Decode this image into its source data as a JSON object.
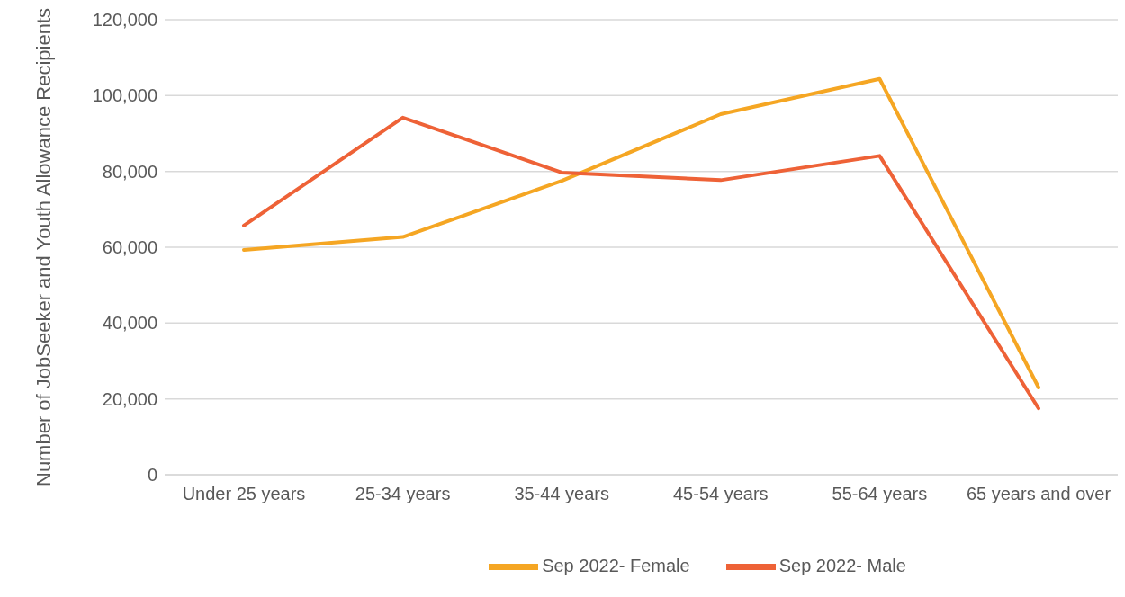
{
  "chart_data": {
    "type": "line",
    "ylabel": "Number of JobSeeker and Youth Allowance Recipients",
    "categories": [
      "Under 25 years",
      "25-34 years",
      "35-44 years",
      "45-54 years",
      "55-64 years",
      "65 years and over"
    ],
    "series": [
      {
        "name": "Sep 2022- Female",
        "color": "#f5a623",
        "values": [
          59300,
          62700,
          77500,
          95100,
          104400,
          23000
        ]
      },
      {
        "name": "Sep 2022- Male",
        "color": "#ee6237",
        "values": [
          65700,
          94200,
          79700,
          77700,
          84100,
          17500
        ]
      }
    ],
    "ylim": [
      0,
      120000
    ],
    "yticks": [
      0,
      {
        "value": 20000,
        "label": "20,000"
      },
      {
        "value": 40000,
        "label": "40,000"
      },
      {
        "value": 60000,
        "label": "60,000"
      },
      {
        "value": 80000,
        "label": "80,000"
      },
      {
        "value": 100000,
        "label": "100,000"
      },
      {
        "value": 120000,
        "label": "120,000"
      }
    ],
    "grid": "y",
    "legend": "bottom",
    "marker": "none",
    "line_style": "solid"
  }
}
